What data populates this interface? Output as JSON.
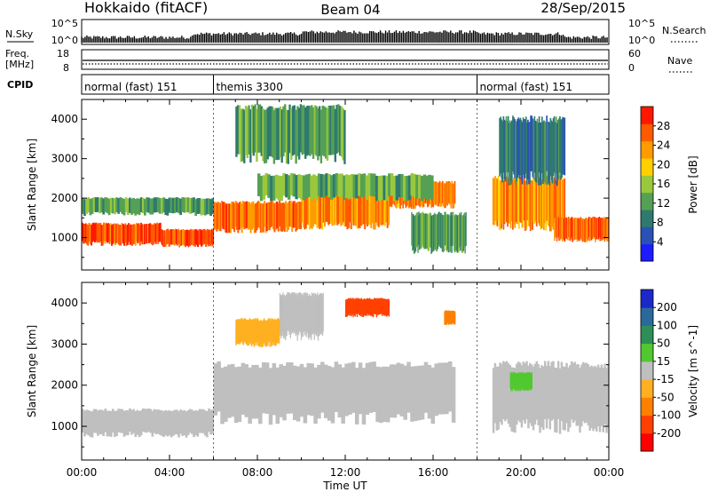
{
  "header": {
    "station": "Hokkaido (fitACF)",
    "beam": "Beam 04",
    "date": "28/Sep/2015"
  },
  "aux": {
    "nsky_label": "N.Sky",
    "nsearch_label": "N.Search",
    "noise_ticks": [
      "10^5",
      "10^0"
    ],
    "freq_label_1": "Freq.",
    "freq_label_2": "[MHz]",
    "freq_ticks": [
      "18",
      "8"
    ],
    "nave_label": "Nave",
    "nave_ticks": [
      "60",
      "0"
    ],
    "cpid_label": "CPID",
    "cpid_segments": [
      {
        "label": "normal (fast) 151",
        "start": 0,
        "end": 6
      },
      {
        "label": "themis 3300",
        "start": 6,
        "end": 18
      },
      {
        "label": "normal (fast) 151",
        "start": 18,
        "end": 24
      }
    ]
  },
  "chart_data": [
    {
      "type": "heatmap",
      "title": "Power [dB]",
      "ylabel": "Slant Range [km]",
      "xlabel": "Time UT",
      "xlim": [
        0,
        24
      ],
      "ylim": [
        180,
        4500
      ],
      "yticks": [
        1000,
        2000,
        3000,
        4000
      ],
      "colorbar": {
        "label": "Power [dB]",
        "ticks": [
          4,
          8,
          12,
          16,
          20,
          24,
          28
        ],
        "range": [
          0,
          32
        ],
        "colors": [
          "#1c1cff",
          "#2a52b4",
          "#2f7a6e",
          "#55a055",
          "#9ac83c",
          "#ffd000",
          "#ff9a00",
          "#ff5a00",
          "#ff1800"
        ]
      },
      "regions": [
        {
          "t": [
            0,
            3.6
          ],
          "r": [
            850,
            1350
          ],
          "v": 28
        },
        {
          "t": [
            3.6,
            6
          ],
          "r": [
            800,
            1200
          ],
          "v": 28
        },
        {
          "t": [
            0,
            6
          ],
          "r": [
            1600,
            2000
          ],
          "v": 12
        },
        {
          "t": [
            6,
            10
          ],
          "r": [
            1200,
            1900
          ],
          "v": 26
        },
        {
          "t": [
            10,
            14
          ],
          "r": [
            1300,
            2100
          ],
          "v": 24
        },
        {
          "t": [
            14,
            17
          ],
          "r": [
            1800,
            2400
          ],
          "v": 25
        },
        {
          "t": [
            8,
            16
          ],
          "r": [
            2000,
            2600
          ],
          "v": 14
        },
        {
          "t": [
            7,
            12
          ],
          "r": [
            3000,
            4300
          ],
          "v": 12
        },
        {
          "t": [
            15,
            17.5
          ],
          "r": [
            700,
            1600
          ],
          "v": 12
        },
        {
          "t": [
            18.7,
            22
          ],
          "r": [
            1300,
            2500
          ],
          "v": 24
        },
        {
          "t": [
            21.5,
            24
          ],
          "r": [
            950,
            1500
          ],
          "v": 26
        },
        {
          "t": [
            19,
            22
          ],
          "r": [
            2500,
            4000
          ],
          "v": 8
        }
      ]
    },
    {
      "type": "heatmap",
      "title": "Velocity [m s^-1]",
      "ylabel": "Slant Range [km]",
      "xlabel": "Time UT",
      "xlim": [
        0,
        24
      ],
      "ylim": [
        180,
        4500
      ],
      "yticks": [
        1000,
        2000,
        3000,
        4000
      ],
      "xticks": [
        "00:00",
        "04:00",
        "08:00",
        "12:00",
        "16:00",
        "20:00",
        "00:00"
      ],
      "colorbar": {
        "label": "Velocity [m s^-1]",
        "ticks": [
          200,
          100,
          50,
          15,
          -15,
          -50,
          -100,
          -200
        ],
        "colors": [
          "#1c28c8",
          "#2a6a9a",
          "#2e8e58",
          "#52c830",
          "#bfbfbf",
          "#ffb020",
          "#ff8000",
          "#ff4000",
          "#ff0000"
        ]
      },
      "regions": [
        {
          "t": [
            0,
            6
          ],
          "r": [
            800,
            1400
          ],
          "v": 0
        },
        {
          "t": [
            6,
            17
          ],
          "r": [
            1200,
            2500
          ],
          "v": 0
        },
        {
          "t": [
            18.7,
            24
          ],
          "r": [
            1000,
            2500
          ],
          "v": 0
        },
        {
          "t": [
            9,
            11
          ],
          "r": [
            3200,
            4200
          ],
          "v": 0
        },
        {
          "t": [
            12,
            14
          ],
          "r": [
            3700,
            4100
          ],
          "v": -150
        },
        {
          "t": [
            16.5,
            17
          ],
          "r": [
            3500,
            3800
          ],
          "v": -60
        },
        {
          "t": [
            19.5,
            20.5
          ],
          "r": [
            1900,
            2300
          ],
          "v": 40
        },
        {
          "t": [
            7,
            9
          ],
          "r": [
            3000,
            3600
          ],
          "v": -40
        }
      ]
    }
  ]
}
